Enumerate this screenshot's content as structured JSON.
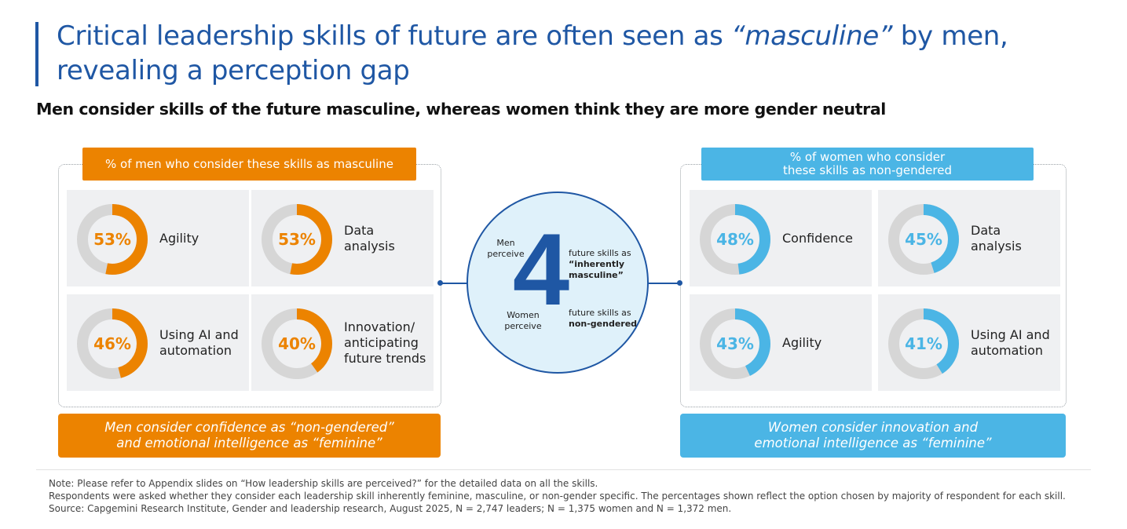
{
  "header": {
    "title_part1": "Critical leadership skills of future are often seen as ",
    "title_em": "“masculine”",
    "title_part2": " by men, revealing a perception gap",
    "subtitle": "Men consider skills of the future masculine, whereas women think they are more gender neutral"
  },
  "colors": {
    "brand_blue": "#1f57a4",
    "orange": "#ec8300",
    "light_blue": "#4bb5e5",
    "track_gray": "#d6d6d6",
    "card_bg": "#eff0f2"
  },
  "center": {
    "number": "4",
    "men_label": "Men\nperceive",
    "men_desc_1": "future skills as",
    "men_desc_2": "“inherently\nmasculine”",
    "women_label": "Women\nperceive",
    "women_desc_1": "future skills as",
    "women_desc_2": "non-gendered"
  },
  "chart_data": [
    {
      "type": "pie",
      "title": "% of men who consider these skills as masculine",
      "categories": [
        "Agility",
        "Data analysis",
        "Using AI and automation",
        "Innovation/ anticipating future trends"
      ],
      "values": [
        53,
        53,
        46,
        40
      ],
      "labels": [
        "53%",
        "53%",
        "46%",
        "40%"
      ],
      "color": "#ec8300",
      "footnote": "Men consider confidence as “non-gendered”\nand emotional intelligence as “feminine”"
    },
    {
      "type": "pie",
      "title": "% of women who consider these skills as non-gendered",
      "categories": [
        "Confidence",
        "Data analysis",
        "Agility",
        "Using AI and automation"
      ],
      "values": [
        48,
        45,
        43,
        41
      ],
      "labels": [
        "48%",
        "45%",
        "43%",
        "41%"
      ],
      "color": "#4bb5e5",
      "footnote": "Women consider innovation and\nemotional intelligence as “feminine”"
    }
  ],
  "notes": [
    "Note: Please refer to Appendix slides on “How leadership skills are perceived?” for the detailed data on all the skills.",
    "Respondents were asked whether they consider each leadership skill inherently feminine, masculine, or non-gender specific. The percentages shown reflect the option chosen by majority of respondent for each skill.",
    "Source: Capgemini Research Institute, Gender and leadership research, August 2025, N = 2,747 leaders; N = 1,375 women and N = 1,372 men."
  ]
}
